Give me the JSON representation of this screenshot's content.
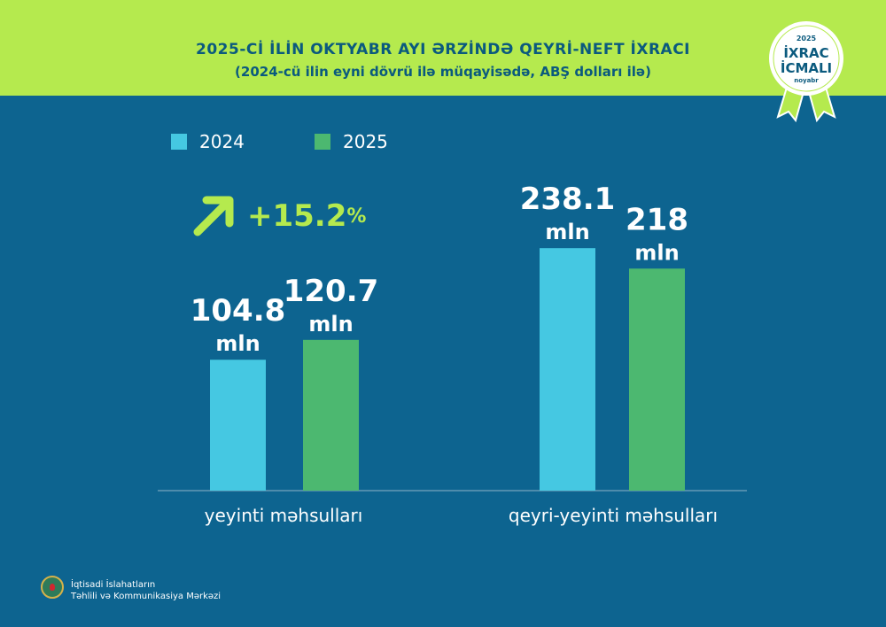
{
  "header": {
    "title": "2025-Cİ İLİN OKTYABR AYI ƏRZİNDƏ QEYRİ-NEFT İXRACI",
    "subtitle": "(2024-cü ilin eyni dövrü ilə müqayisədə, ABŞ dolları ilə)"
  },
  "badge": {
    "year": "2025",
    "line1": "İXRAC",
    "line2": "İCMALI",
    "month": "noyabr"
  },
  "growth": {
    "value": "+15.2",
    "unit": "%",
    "icon": "arrow-up-right-icon"
  },
  "colors": {
    "header": "#b5ea4e",
    "background": "#0d6490",
    "s2024": "#45c8e2",
    "s2025": "#4cb870"
  },
  "chart_data": {
    "type": "bar",
    "categories": [
      "yeyinti məhsulları",
      "qeyri-yeyinti məhsulları"
    ],
    "series": [
      {
        "name": "2024",
        "values": [
          104.8,
          238.1
        ],
        "labels": [
          "104.8",
          "238.1"
        ]
      },
      {
        "name": "2025",
        "values": [
          120.7,
          218
        ],
        "labels": [
          "120.7",
          "218"
        ]
      }
    ],
    "unit": "mln",
    "grid": false,
    "legend": "top-left"
  },
  "footer": {
    "org_line1": "İqtisadi İslahatların",
    "org_line2": "Təhlili və Kommunikasiya Mərkəzi"
  }
}
